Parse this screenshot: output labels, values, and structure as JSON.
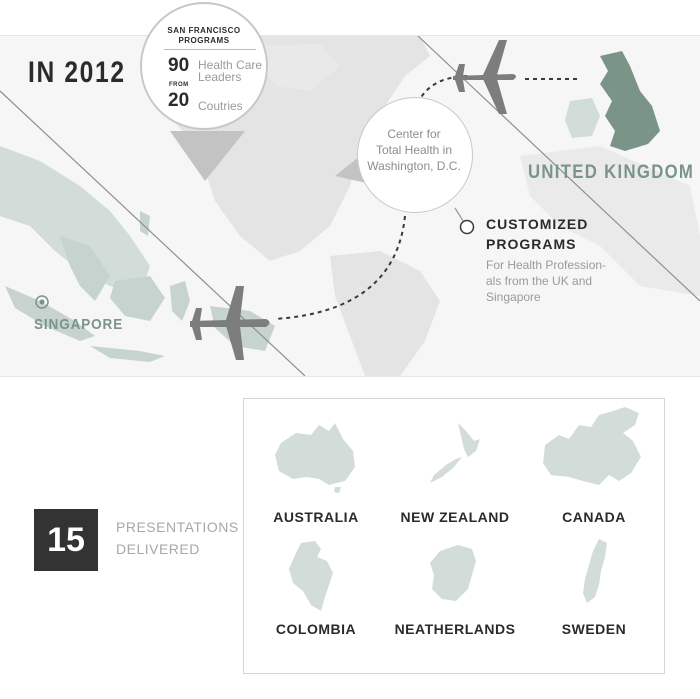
{
  "title": "IN 2012",
  "stats": {
    "heading": "SAN FRANCISCO\nPROGRAMS",
    "leaders_count": "90",
    "leaders_label": "Health Care\nLeaders",
    "from_label": "FROM",
    "countries_count": "20",
    "countries_label": "Coutries"
  },
  "center": {
    "text": "Center for\nTotal Health in\nWashington, D.C."
  },
  "locations": {
    "uk": "UNITED KINGDOM",
    "singapore": "SINGAPORE"
  },
  "programs": {
    "title_line1": "CUSTOMIZED",
    "title_line2": "PROGRAMS",
    "subtitle": "For Health Profession-\nals from the UK and\nSingapore"
  },
  "presentations": {
    "count": "15",
    "label": "PRESENTATIONS\nDELIVERED"
  },
  "countries": [
    {
      "name": "AUSTRALIA",
      "icon": "australia-map-icon"
    },
    {
      "name": "NEW ZEALAND",
      "icon": "new-zealand-map-icon"
    },
    {
      "name": "CANADA",
      "icon": "canada-map-icon"
    },
    {
      "name": "COLOMBIA",
      "icon": "colombia-map-icon"
    },
    {
      "name": "NEATHERLANDS",
      "icon": "netherlands-map-icon"
    },
    {
      "name": "SWEDEN",
      "icon": "sweden-map-icon"
    }
  ],
  "colors": {
    "land": "#e3e3e3",
    "highlight_land": "#d2dcd8",
    "uk_land": "#7a9488",
    "label_green": "#7a9488",
    "plane": "#7d7d7d",
    "dark_box": "#333333"
  }
}
